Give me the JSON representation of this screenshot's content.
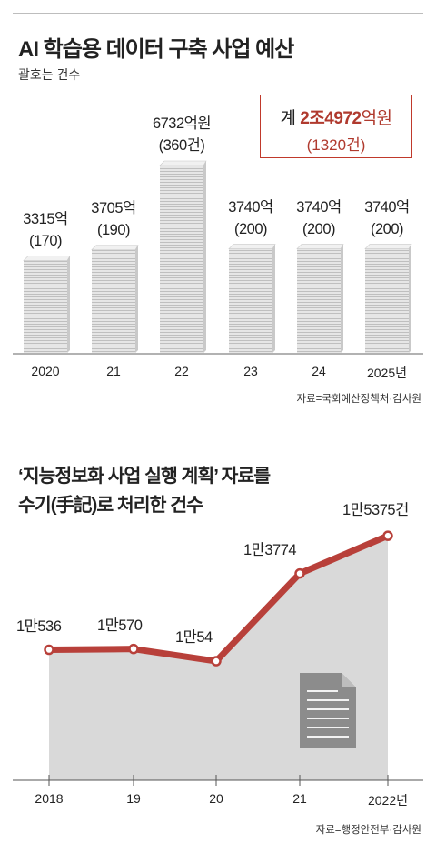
{
  "chart_data": [
    {
      "type": "bar",
      "title": "AI 학습용 데이터 구축 사업 예산",
      "subtitle": "괄호는 건수",
      "total_label": {
        "prefix": "계 ",
        "amount": "2조4972",
        "unit": "억원",
        "count": "(1320건)"
      },
      "categories": [
        "2020",
        "21",
        "22",
        "23",
        "24",
        "2025년"
      ],
      "values": [
        3315,
        3705,
        6732,
        3740,
        3740,
        3740
      ],
      "value_labels": [
        "3315억",
        "3705억",
        "6732억원",
        "3740억",
        "3740억",
        "3740억"
      ],
      "count_labels": [
        "(170)",
        "(190)",
        "(360건)",
        "(200)",
        "(200)",
        "(200)"
      ],
      "counts": [
        170,
        190,
        360,
        200,
        200,
        200
      ],
      "ylim": [
        0,
        7000
      ],
      "grid": false,
      "source": "자료=국회예산정책처·감사원"
    },
    {
      "type": "line",
      "title_lines": [
        "‘지능정보화 사업 실행 계획’ 자료를",
        "수기(手記)로 처리한 건수"
      ],
      "x": [
        "2018",
        "19",
        "20",
        "21",
        "2022년"
      ],
      "values": [
        10536,
        10570,
        10054,
        13774,
        15375
      ],
      "value_labels": [
        "1만536",
        "1만570",
        "1만54",
        "1만3774",
        "1만5375건"
      ],
      "ylim": [
        5000,
        16500
      ],
      "grid": false,
      "source": "자료=행정안전부·감사원"
    }
  ],
  "colors": {
    "accent_red": "#b8403a",
    "bar_gray": "#dcdcdc",
    "area_gray": "#d6d6d6"
  },
  "icons": [
    "document-icon"
  ]
}
